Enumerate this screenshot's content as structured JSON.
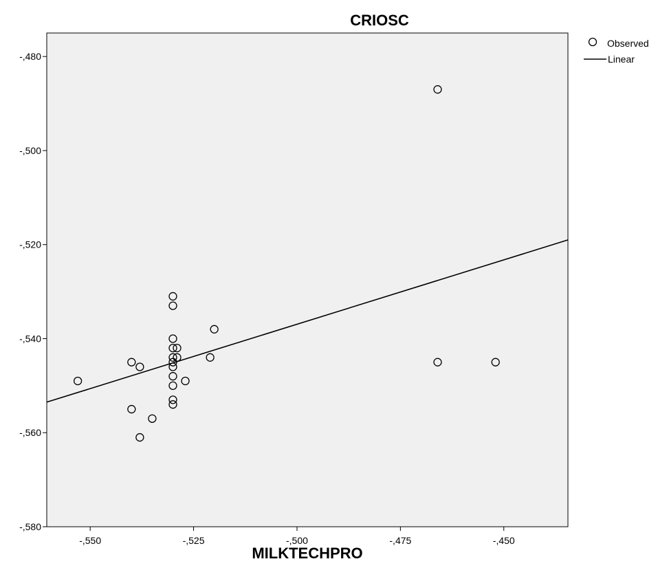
{
  "chart_data": {
    "type": "scatter",
    "title": "CRIOSC",
    "xlabel": "MILKTECHPRO",
    "ylabel": "",
    "xlim": [
      -0.5605,
      -0.4345
    ],
    "ylim": [
      -0.58,
      -0.475
    ],
    "x_ticks": [
      -0.55,
      -0.525,
      -0.5,
      -0.475,
      -0.45
    ],
    "x_tick_labels": [
      "-,550",
      "-,525",
      "-,500",
      "-,475",
      "-,450"
    ],
    "y_ticks": [
      -0.48,
      -0.5,
      -0.52,
      -0.54,
      -0.56,
      -0.58
    ],
    "y_tick_labels": [
      "-,480",
      "-,500",
      "-,520",
      "-,540",
      "-,560",
      "-,580"
    ],
    "grid": false,
    "legend_position": "top-right",
    "series": [
      {
        "name": "Observed",
        "kind": "points",
        "points": [
          [
            -0.553,
            -0.549
          ],
          [
            -0.54,
            -0.545
          ],
          [
            -0.538,
            -0.546
          ],
          [
            -0.54,
            -0.555
          ],
          [
            -0.535,
            -0.557
          ],
          [
            -0.538,
            -0.561
          ],
          [
            -0.53,
            -0.531
          ],
          [
            -0.53,
            -0.533
          ],
          [
            -0.53,
            -0.54
          ],
          [
            -0.53,
            -0.542
          ],
          [
            -0.529,
            -0.542
          ],
          [
            -0.53,
            -0.544
          ],
          [
            -0.529,
            -0.544
          ],
          [
            -0.53,
            -0.545
          ],
          [
            -0.53,
            -0.546
          ],
          [
            -0.53,
            -0.548
          ],
          [
            -0.53,
            -0.55
          ],
          [
            -0.527,
            -0.549
          ],
          [
            -0.53,
            -0.553
          ],
          [
            -0.53,
            -0.554
          ],
          [
            -0.521,
            -0.544
          ],
          [
            -0.52,
            -0.538
          ],
          [
            -0.466,
            -0.487
          ],
          [
            -0.466,
            -0.545
          ],
          [
            -0.452,
            -0.545
          ]
        ]
      },
      {
        "name": "Linear",
        "kind": "line",
        "points": [
          [
            -0.5605,
            -0.5535
          ],
          [
            -0.4345,
            -0.519
          ]
        ]
      }
    ],
    "colors": {
      "plot_background": "#f0f0f0",
      "marker_stroke": "#000000",
      "line": "#000000"
    }
  }
}
